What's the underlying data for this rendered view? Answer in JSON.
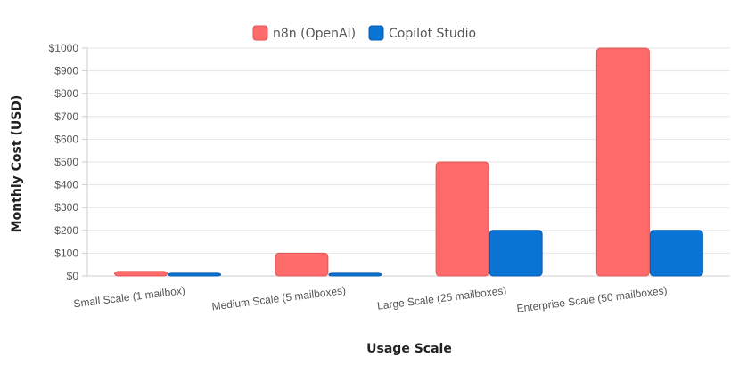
{
  "chart_data": {
    "type": "bar",
    "categories": [
      "Small Scale (1 mailbox)",
      "Medium Scale (5 mailboxes)",
      "Large Scale (25 mailboxes)",
      "Enterprise Scale (50 mailboxes)"
    ],
    "series": [
      {
        "name": "n8n (OpenAI)",
        "values": [
          20,
          100,
          500,
          1000
        ],
        "color": "#ff6b6b",
        "border": "#e05555"
      },
      {
        "name": "Copilot Studio",
        "values": [
          12,
          12,
          200,
          200
        ],
        "color": "#0a74d4",
        "border": "#0a5bb0"
      }
    ],
    "xlabel": "Usage Scale",
    "ylabel": "Monthly Cost (USD)",
    "ylim": [
      0,
      1000
    ],
    "yticks": [
      "$0",
      "$100",
      "$200",
      "$300",
      "$400",
      "$500",
      "$600",
      "$700",
      "$800",
      "$900",
      "$1000"
    ],
    "grid": true,
    "legend_position": "top-center"
  }
}
